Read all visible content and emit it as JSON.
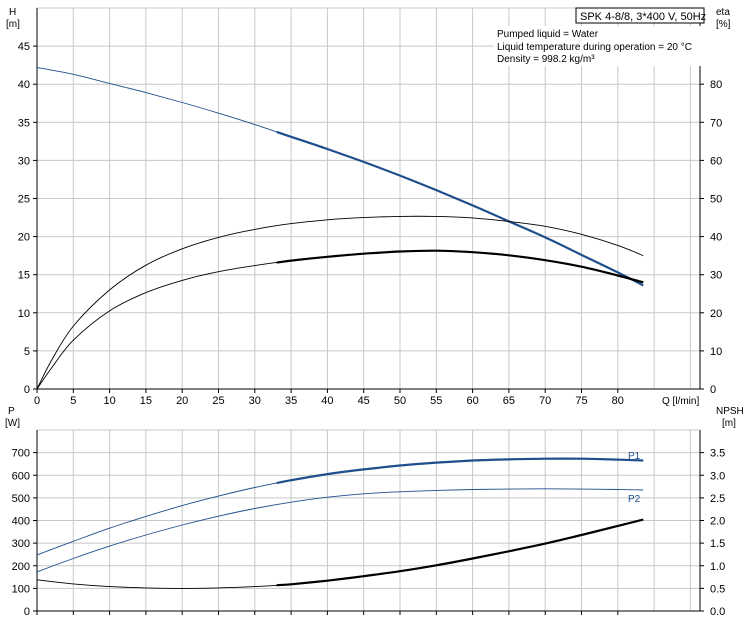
{
  "header": {
    "title": "SPK 4-8/8, 3*400 V, 50Hz",
    "info_lines": [
      "Pumped liquid = Water",
      "Liquid temperature during operation = 20 °C",
      "Density = 998.2 kg/m³"
    ]
  },
  "colors": {
    "grid": "#c8c8c8",
    "axis": "#000000",
    "head_curve": "#1f4e8c",
    "power_curve": "#1f4e8c",
    "eta_curve": "#000000",
    "npsh_curve": "#000000"
  },
  "chart_data": [
    {
      "type": "line",
      "xlabel": "Q [l/min]",
      "ylabel": [
        "H",
        "[m]"
      ],
      "y2label": [
        "eta",
        "[%]"
      ],
      "xlim": [
        0,
        88
      ],
      "ylim": [
        0,
        50
      ],
      "y2lim": [
        0,
        100
      ],
      "xticks": [
        0,
        5,
        10,
        15,
        20,
        25,
        30,
        35,
        40,
        45,
        50,
        55,
        60,
        65,
        70,
        75,
        80
      ],
      "yticks": [
        0,
        5,
        10,
        15,
        20,
        25,
        30,
        35,
        40,
        45
      ],
      "y2ticks": [
        0,
        10,
        20,
        30,
        40,
        50,
        60,
        70,
        80
      ],
      "grid": true,
      "series": [
        {
          "key": "head",
          "axis": "left",
          "x": [
            0,
            5,
            10,
            15,
            20,
            25,
            30,
            35,
            40,
            45,
            50,
            55,
            60,
            65,
            70,
            75,
            80,
            83.5
          ],
          "y": [
            42.2,
            41.3,
            40.1,
            38.9,
            37.6,
            36.2,
            34.7,
            33.1,
            31.5,
            29.8,
            28.0,
            26.1,
            24.1,
            22.0,
            19.9,
            17.6,
            15.3,
            13.6
          ],
          "bold_range": [
            33,
            83.5
          ]
        },
        {
          "key": "eta_upper",
          "axis": "right",
          "x": [
            0,
            2,
            5,
            10,
            15,
            20,
            25,
            30,
            35,
            40,
            45,
            50,
            55,
            60,
            65,
            70,
            75,
            80,
            83.5
          ],
          "y": [
            0,
            7.5,
            16.5,
            26.0,
            32.5,
            36.8,
            39.8,
            41.9,
            43.4,
            44.4,
            45.0,
            45.3,
            45.3,
            44.9,
            44.0,
            42.7,
            40.6,
            37.7,
            35.0
          ]
        },
        {
          "key": "eta_lower",
          "axis": "right",
          "x": [
            0,
            2,
            5,
            10,
            15,
            20,
            25,
            30,
            35,
            40,
            45,
            50,
            55,
            60,
            65,
            70,
            75,
            80,
            83.5
          ],
          "y": [
            0,
            5.5,
            12.8,
            20.5,
            25.3,
            28.5,
            30.8,
            32.4,
            33.7,
            34.7,
            35.5,
            36.1,
            36.3,
            35.9,
            35.1,
            33.8,
            32.1,
            29.8,
            28.0
          ],
          "bold_range": [
            33,
            83.5
          ]
        }
      ]
    },
    {
      "type": "line",
      "xlabel": "",
      "ylabel": [
        "P",
        "[W]"
      ],
      "y2label": [
        "NPSH",
        "[m]"
      ],
      "xlim": [
        0,
        88
      ],
      "ylim": [
        0,
        800
      ],
      "y2lim": [
        0,
        4
      ],
      "yticks": [
        0,
        100,
        200,
        300,
        400,
        500,
        600,
        700
      ],
      "y2ticks": [
        0.0,
        0.5,
        1.0,
        1.5,
        2.0,
        2.5,
        3.0,
        3.5
      ],
      "y2tick_labels": [
        "0.0",
        "0.5",
        "1.0",
        "1.5",
        "2.0",
        "2.5",
        "3.0",
        "3.5"
      ],
      "grid": true,
      "series": [
        {
          "key": "p1",
          "name": "P1",
          "axis": "left",
          "x": [
            0,
            5,
            10,
            15,
            20,
            25,
            30,
            35,
            40,
            45,
            50,
            55,
            60,
            65,
            70,
            75,
            80,
            83.5
          ],
          "y": [
            248,
            308,
            366,
            418,
            466,
            508,
            546,
            578,
            605,
            626,
            643,
            656,
            665,
            670,
            673,
            673,
            669,
            665
          ],
          "bold_range": [
            33,
            83.5
          ]
        },
        {
          "key": "p2",
          "name": "P2",
          "axis": "left",
          "x": [
            0,
            5,
            10,
            15,
            20,
            25,
            30,
            35,
            40,
            45,
            50,
            55,
            60,
            65,
            70,
            75,
            80,
            83.5
          ],
          "y": [
            173,
            232,
            287,
            336,
            380,
            419,
            453,
            481,
            503,
            518,
            527,
            533,
            537,
            539,
            540,
            539,
            537,
            535
          ]
        },
        {
          "key": "npsh",
          "axis": "right",
          "x": [
            0,
            5,
            10,
            15,
            20,
            25,
            30,
            35,
            40,
            45,
            50,
            55,
            60,
            65,
            70,
            75,
            80,
            83.5
          ],
          "y": [
            0.69,
            0.6,
            0.54,
            0.51,
            0.5,
            0.51,
            0.54,
            0.59,
            0.67,
            0.77,
            0.88,
            1.01,
            1.16,
            1.32,
            1.49,
            1.68,
            1.88,
            2.02
          ],
          "bold_range": [
            33,
            83.5
          ]
        }
      ]
    }
  ]
}
